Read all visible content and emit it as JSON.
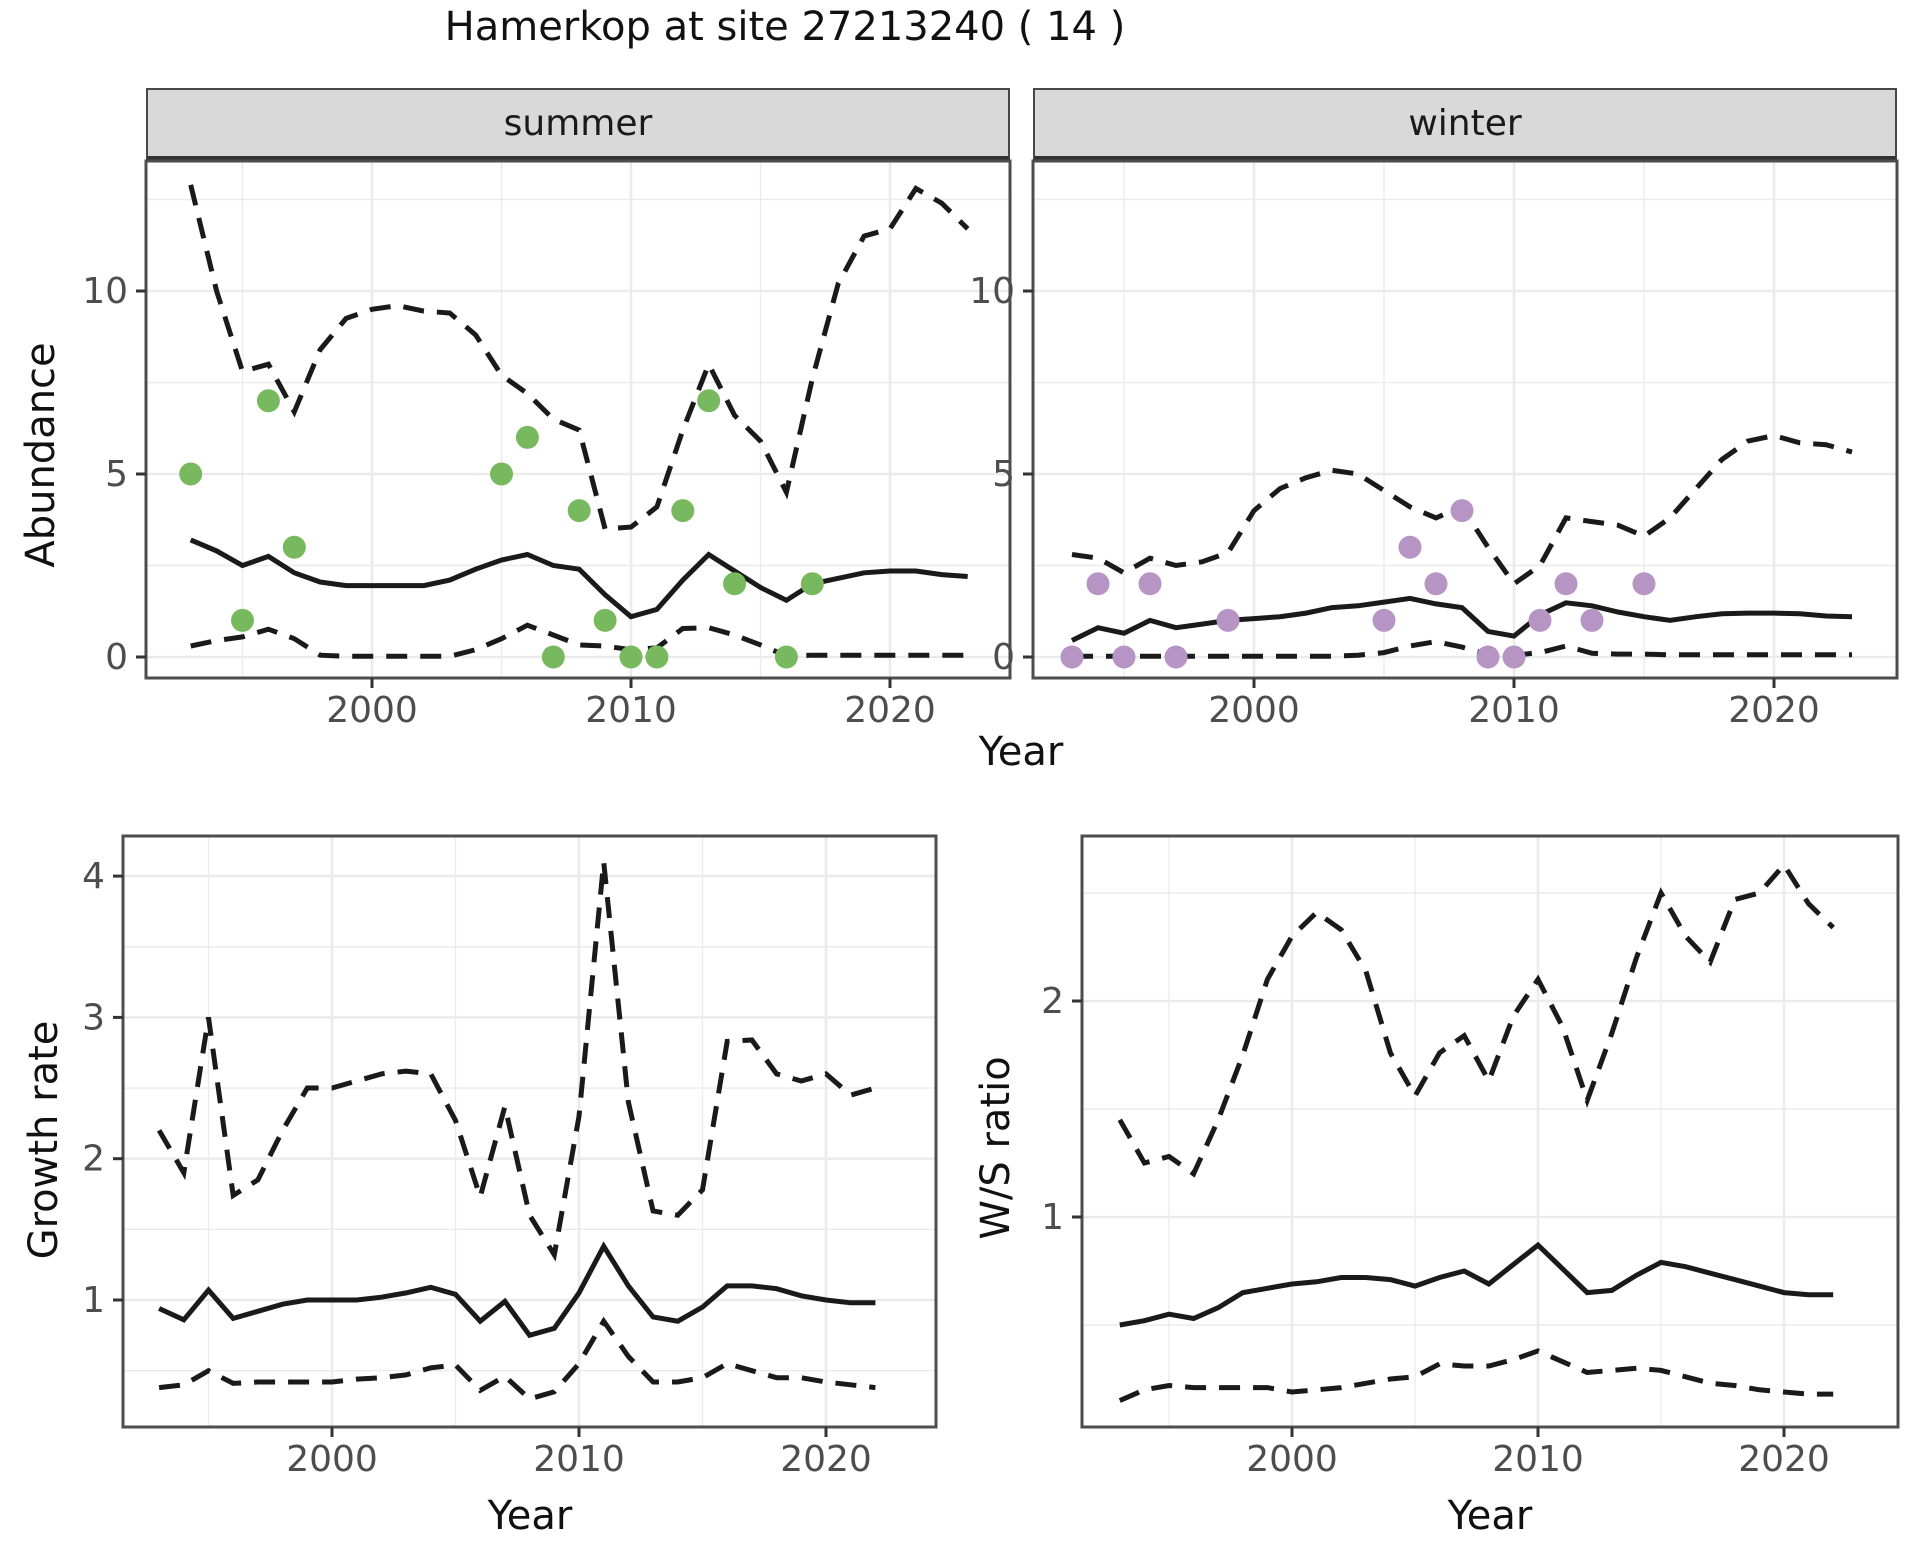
{
  "title": "Hamerkop at site 27213240 ( 14 )",
  "facets": [
    {
      "label": "summer"
    },
    {
      "label": "winter"
    }
  ],
  "axis_labels": {
    "abundance": "Abundance",
    "year": "Year",
    "growth_rate": "Growth rate",
    "ws_ratio": "W/S ratio"
  },
  "colors": {
    "summer_points": "#78b85e",
    "winter_points": "#b694c4",
    "line": "#1a1a1a",
    "grid_major": "#ebebeb",
    "grid_minor": "#ebebeb",
    "panel_border": "#4d4d4d",
    "tick_text": "#4d4d4d",
    "strip_bg": "#d9d9d9"
  },
  "chart_data": [
    {
      "id": "abundance_summer",
      "type": "line",
      "facet": "summer",
      "xlabel": "Year",
      "ylabel": "Abundance",
      "x_ticks": [
        2000,
        2010,
        2020
      ],
      "x_minor": [
        1995,
        2005,
        2015
      ],
      "y_ticks": [
        0,
        5,
        10
      ],
      "y_minor": [
        2.5,
        7.5,
        12.5
      ],
      "xlim": [
        1991.3,
        2024.6
      ],
      "ylim": [
        -0.6,
        14.3
      ],
      "years": [
        1993,
        1994,
        1995,
        1996,
        1997,
        1998,
        1999,
        2000,
        2001,
        2002,
        2003,
        2004,
        2005,
        2006,
        2007,
        2008,
        2009,
        2010,
        2011,
        2012,
        2013,
        2014,
        2015,
        2016,
        2017,
        2018,
        2019,
        2020,
        2021,
        2022,
        2023
      ],
      "series": [
        {
          "name": "median",
          "style": "solid",
          "values": [
            3.2,
            2.9,
            2.5,
            2.75,
            2.3,
            2.05,
            1.95,
            1.95,
            1.95,
            1.95,
            2.1,
            2.4,
            2.65,
            2.8,
            2.5,
            2.4,
            1.7,
            1.1,
            1.3,
            2.1,
            2.8,
            2.35,
            1.9,
            1.55,
            2.0,
            2.15,
            2.3,
            2.35,
            2.35,
            2.25,
            2.2
          ]
        },
        {
          "name": "upper_ci",
          "style": "dashed",
          "values": [
            12.9,
            10.0,
            7.8,
            8.0,
            6.7,
            8.4,
            9.25,
            9.5,
            9.6,
            9.45,
            9.4,
            8.8,
            7.7,
            7.2,
            6.5,
            6.2,
            3.5,
            3.55,
            4.1,
            6.2,
            8.0,
            6.6,
            5.9,
            4.5,
            7.6,
            10.2,
            11.5,
            11.7,
            12.8,
            12.4,
            11.7
          ]
        },
        {
          "name": "lower_ci",
          "style": "dashed",
          "values": [
            0.3,
            0.45,
            0.55,
            0.76,
            0.5,
            0.05,
            0.02,
            0.02,
            0.02,
            0.02,
            0.02,
            0.2,
            0.5,
            0.87,
            0.6,
            0.33,
            0.3,
            0.2,
            0.25,
            0.78,
            0.8,
            0.6,
            0.33,
            0.03,
            0.05,
            0.05,
            0.05,
            0.05,
            0.05,
            0.05,
            0.05
          ]
        }
      ],
      "points": {
        "name": "observed_counts",
        "color_key": "summer_points",
        "data": [
          [
            1993,
            5
          ],
          [
            1995,
            1
          ],
          [
            1996,
            7
          ],
          [
            1997,
            3
          ],
          [
            2005,
            5
          ],
          [
            2006,
            6
          ],
          [
            2007,
            0
          ],
          [
            2008,
            4
          ],
          [
            2009,
            1
          ],
          [
            2010,
            0
          ],
          [
            2011,
            0
          ],
          [
            2012,
            4
          ],
          [
            2013,
            7
          ],
          [
            2014,
            2
          ],
          [
            2016,
            0
          ],
          [
            2017,
            2
          ]
        ]
      }
    },
    {
      "id": "abundance_winter",
      "type": "line",
      "facet": "winter",
      "xlabel": "Year",
      "ylabel": "Abundance",
      "x_ticks": [
        2000,
        2010,
        2020
      ],
      "x_minor": [
        1995,
        2005,
        2015
      ],
      "y_ticks": [
        0,
        5,
        10
      ],
      "y_minor": [
        2.5,
        7.5,
        12.5
      ],
      "xlim": [
        1991.3,
        2024.7
      ],
      "ylim": [
        -0.6,
        14.3
      ],
      "years": [
        1993,
        1994,
        1995,
        1996,
        1997,
        1998,
        1999,
        2000,
        2001,
        2002,
        2003,
        2004,
        2005,
        2006,
        2007,
        2008,
        2009,
        2010,
        2011,
        2012,
        2013,
        2014,
        2015,
        2016,
        2017,
        2018,
        2019,
        2020,
        2021,
        2022,
        2023
      ],
      "series": [
        {
          "name": "median",
          "style": "solid",
          "values": [
            0.45,
            0.8,
            0.65,
            1.0,
            0.8,
            0.9,
            1.0,
            1.05,
            1.1,
            1.2,
            1.35,
            1.4,
            1.5,
            1.6,
            1.45,
            1.35,
            0.7,
            0.57,
            1.15,
            1.48,
            1.4,
            1.23,
            1.1,
            1.0,
            1.1,
            1.18,
            1.2,
            1.2,
            1.18,
            1.12,
            1.1
          ]
        },
        {
          "name": "upper_ci",
          "style": "dashed",
          "values": [
            2.8,
            2.7,
            2.3,
            2.7,
            2.5,
            2.6,
            2.85,
            4.0,
            4.6,
            4.9,
            5.1,
            5.0,
            4.55,
            4.1,
            3.8,
            4.1,
            3.0,
            2.0,
            2.5,
            3.8,
            3.7,
            3.6,
            3.3,
            3.8,
            4.6,
            5.4,
            5.9,
            6.05,
            5.85,
            5.8,
            5.6
          ]
        },
        {
          "name": "lower_ci",
          "style": "dashed",
          "values": [
            0.02,
            0.02,
            0.02,
            0.02,
            0.02,
            0.02,
            0.02,
            0.02,
            0.02,
            0.02,
            0.02,
            0.05,
            0.12,
            0.3,
            0.42,
            0.27,
            0.06,
            0.05,
            0.12,
            0.3,
            0.1,
            0.08,
            0.08,
            0.06,
            0.06,
            0.06,
            0.06,
            0.06,
            0.06,
            0.06,
            0.06
          ]
        }
      ],
      "points": {
        "name": "observed_counts",
        "color_key": "winter_points",
        "data": [
          [
            1993,
            0
          ],
          [
            1994,
            2
          ],
          [
            1995,
            0
          ],
          [
            1996,
            2
          ],
          [
            1997,
            0
          ],
          [
            1999,
            1
          ],
          [
            2005,
            1
          ],
          [
            2006,
            3
          ],
          [
            2007,
            2
          ],
          [
            2008,
            4
          ],
          [
            2009,
            0
          ],
          [
            2010,
            0
          ],
          [
            2011,
            1
          ],
          [
            2012,
            2
          ],
          [
            2013,
            1
          ],
          [
            2015,
            2
          ]
        ]
      }
    },
    {
      "id": "growth_rate",
      "type": "line",
      "facet": null,
      "xlabel": "Year",
      "ylabel": "Growth rate",
      "x_ticks": [
        2000,
        2010,
        2020
      ],
      "x_minor": [
        1995,
        2005,
        2015
      ],
      "y_ticks": [
        1,
        2,
        3,
        4
      ],
      "y_minor": [
        0.5,
        1.5,
        2.5,
        3.5
      ],
      "xlim": [
        1991.5,
        2024.4
      ],
      "ylim": [
        0.1,
        4.28
      ],
      "years": [
        1993,
        1994,
        1995,
        1996,
        1997,
        1998,
        1999,
        2000,
        2001,
        2002,
        2003,
        2004,
        2005,
        2006,
        2007,
        2008,
        2009,
        2010,
        2011,
        2012,
        2013,
        2014,
        2015,
        2016,
        2017,
        2018,
        2019,
        2020,
        2021,
        2022
      ],
      "series": [
        {
          "name": "median",
          "style": "solid",
          "values": [
            0.94,
            0.86,
            1.07,
            0.87,
            0.92,
            0.97,
            1.0,
            1.0,
            1.0,
            1.02,
            1.05,
            1.09,
            1.04,
            0.85,
            0.99,
            0.75,
            0.8,
            1.05,
            1.38,
            1.1,
            0.88,
            0.85,
            0.95,
            1.1,
            1.1,
            1.08,
            1.03,
            1.0,
            0.98,
            0.98
          ]
        },
        {
          "name": "upper_ci",
          "style": "dashed",
          "values": [
            2.2,
            1.9,
            3.0,
            1.74,
            1.85,
            2.2,
            2.5,
            2.5,
            2.55,
            2.6,
            2.62,
            2.6,
            2.27,
            1.73,
            2.37,
            1.6,
            1.32,
            2.3,
            4.1,
            2.4,
            1.63,
            1.6,
            1.78,
            2.83,
            2.84,
            2.6,
            2.55,
            2.6,
            2.45,
            2.5
          ]
        },
        {
          "name": "lower_ci",
          "style": "dashed",
          "values": [
            0.38,
            0.4,
            0.5,
            0.41,
            0.42,
            0.42,
            0.42,
            0.42,
            0.44,
            0.45,
            0.47,
            0.52,
            0.54,
            0.36,
            0.46,
            0.3,
            0.35,
            0.55,
            0.85,
            0.6,
            0.42,
            0.42,
            0.45,
            0.55,
            0.5,
            0.45,
            0.45,
            0.42,
            0.4,
            0.38
          ]
        }
      ],
      "points": null
    },
    {
      "id": "ws_ratio",
      "type": "line",
      "facet": null,
      "xlabel": "Year",
      "ylabel": "W/S ratio",
      "x_ticks": [
        2000,
        2010,
        2020
      ],
      "x_minor": [
        1995,
        2005,
        2015
      ],
      "y_ticks": [
        1,
        2
      ],
      "y_minor": [
        0.5,
        1.5,
        2.5
      ],
      "xlim": [
        1991.5,
        2024.5
      ],
      "ylim": [
        0.03,
        2.77
      ],
      "years": [
        1993,
        1994,
        1995,
        1996,
        1997,
        1998,
        1999,
        2000,
        2001,
        2002,
        2003,
        2004,
        2005,
        2006,
        2007,
        2008,
        2009,
        2010,
        2011,
        2012,
        2013,
        2014,
        2015,
        2016,
        2017,
        2018,
        2019,
        2020,
        2021,
        2022
      ],
      "series": [
        {
          "name": "median",
          "style": "solid",
          "values": [
            0.5,
            0.52,
            0.55,
            0.53,
            0.58,
            0.65,
            0.67,
            0.69,
            0.7,
            0.72,
            0.72,
            0.71,
            0.68,
            0.72,
            0.75,
            0.69,
            0.78,
            0.87,
            0.76,
            0.65,
            0.66,
            0.73,
            0.79,
            0.77,
            0.74,
            0.71,
            0.68,
            0.65,
            0.64,
            0.64
          ]
        },
        {
          "name": "upper_ci",
          "style": "dashed",
          "values": [
            1.45,
            1.25,
            1.28,
            1.2,
            1.45,
            1.75,
            2.1,
            2.3,
            2.41,
            2.33,
            2.14,
            1.76,
            1.56,
            1.76,
            1.84,
            1.63,
            1.93,
            2.1,
            1.88,
            1.54,
            1.85,
            2.2,
            2.5,
            2.3,
            2.18,
            2.47,
            2.5,
            2.63,
            2.45,
            2.34
          ]
        },
        {
          "name": "lower_ci",
          "style": "dashed",
          "values": [
            0.15,
            0.2,
            0.22,
            0.21,
            0.21,
            0.21,
            0.21,
            0.19,
            0.2,
            0.21,
            0.23,
            0.25,
            0.26,
            0.32,
            0.31,
            0.31,
            0.34,
            0.38,
            0.33,
            0.28,
            0.29,
            0.3,
            0.29,
            0.26,
            0.23,
            0.22,
            0.2,
            0.19,
            0.18,
            0.18
          ]
        }
      ],
      "points": null
    }
  ]
}
